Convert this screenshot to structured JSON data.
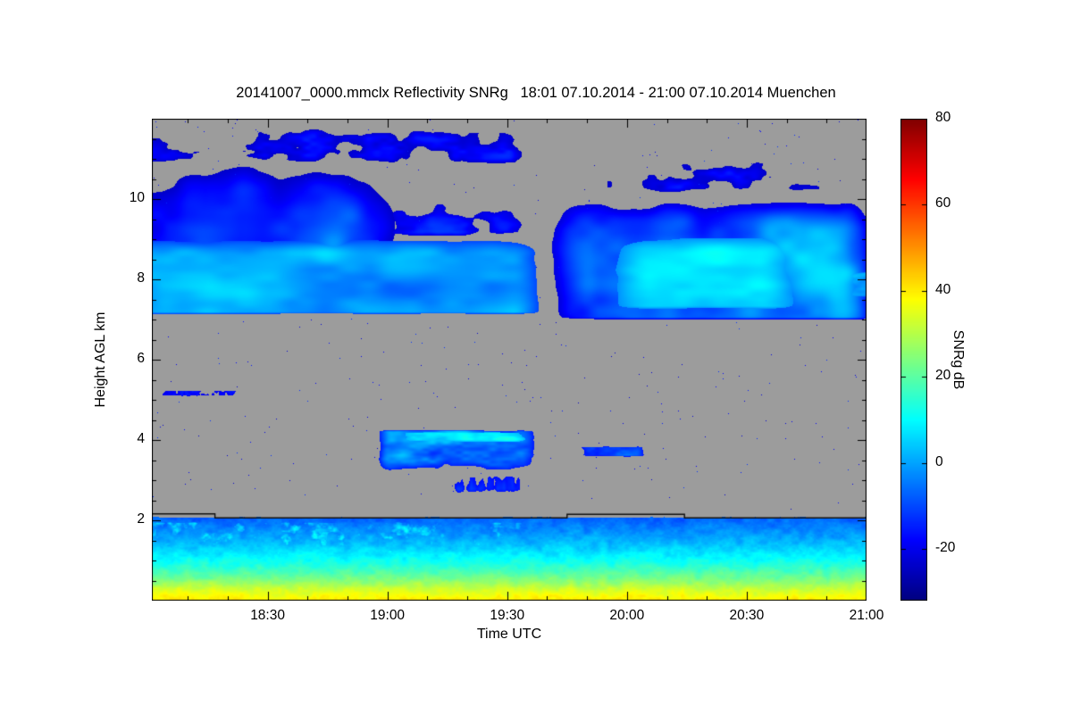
{
  "chart_data": {
    "type": "heatmap",
    "title": "20141007_0000.mmclx Reflectivity SNRg   18:01 07.10.2014 - 21:00 07.10.2014 Muenchen",
    "file": "20141007_0000.mmclx",
    "quantity": "Reflectivity SNRg",
    "time_start": "18:01 07.10.2014",
    "time_end": "21:00 07.10.2014",
    "station": "Muenchen",
    "xlabel": "Time UTC",
    "ylabel": "Height AGL km",
    "x_range_hours": [
      18.0167,
      21.0
    ],
    "y_range_km": [
      0,
      12
    ],
    "x_major_ticks": [
      {
        "hour": 18.5,
        "label": "18:30"
      },
      {
        "hour": 19.0,
        "label": "19:00"
      },
      {
        "hour": 19.5,
        "label": "19:30"
      },
      {
        "hour": 20.0,
        "label": "20:00"
      },
      {
        "hour": 20.5,
        "label": "20:30"
      },
      {
        "hour": 21.0,
        "label": "21:00"
      }
    ],
    "x_minor_step_hours": 0.1666667,
    "y_major_ticks": [
      {
        "km": 2,
        "label": "2"
      },
      {
        "km": 4,
        "label": "4"
      },
      {
        "km": 6,
        "label": "6"
      },
      {
        "km": 8,
        "label": "8"
      },
      {
        "km": 10,
        "label": "10"
      }
    ],
    "y_minor_step_km": 0.5,
    "background_color": "#9c9c9c",
    "colorbar": {
      "label": "SNRg dB",
      "vmin": -32,
      "vmax": 80,
      "colormap": "jet",
      "ticks": [
        {
          "value": 80,
          "label": "80"
        },
        {
          "value": 60,
          "label": "60"
        },
        {
          "value": 40,
          "label": "40"
        },
        {
          "value": 20,
          "label": "20"
        },
        {
          "value": 0,
          "label": "0"
        },
        {
          "value": -20,
          "label": "-20"
        }
      ]
    },
    "bl_top_line_km": [
      [
        18.0167,
        2.16
      ],
      [
        18.28,
        2.16
      ],
      [
        18.28,
        2.06
      ],
      [
        19.75,
        2.06
      ],
      [
        19.75,
        2.15
      ],
      [
        20.24,
        2.15
      ],
      [
        20.24,
        2.06
      ],
      [
        21.0,
        2.06
      ]
    ],
    "features": [
      {
        "kind": "cloud",
        "name": "cirrus-left-upper",
        "t": [
          17.8,
          19.18
        ],
        "h": [
          7.2,
          11.95
        ],
        "soft": [
          0.3,
          0.4,
          0.15,
          2.3
        ],
        "core": 11,
        "edge": -24,
        "density": 0.93,
        "fx": 2.6,
        "fy": 0.55,
        "seed": 7
      },
      {
        "kind": "cloud",
        "name": "cirrus-left-band",
        "t": [
          17.8,
          19.7
        ],
        "h": [
          7.1,
          9.2
        ],
        "soft": [
          0.2,
          0.18,
          0.1,
          0.6
        ],
        "core": 14,
        "edge": -10,
        "density": 0.96,
        "fx": 2.3,
        "fy": 0.9,
        "seed": 11
      },
      {
        "kind": "cloud",
        "name": "cirrus-left-top-speckle",
        "t": [
          17.8,
          19.7
        ],
        "h": [
          10.6,
          12.1
        ],
        "soft": [
          0.2,
          0.2,
          0.5,
          0.6
        ],
        "core": -8,
        "edge": -24,
        "density": 0.55,
        "fx": 6,
        "fy": 2,
        "seed": 15
      },
      {
        "kind": "cloud",
        "name": "cirrus-dip-speckle",
        "t": [
          18.9,
          19.68
        ],
        "h": [
          8.9,
          10.7
        ],
        "soft": [
          0.15,
          0.15,
          0.3,
          0.8
        ],
        "core": -6,
        "edge": -22,
        "density": 0.5,
        "fx": 5,
        "fy": 1.4,
        "seed": 13
      },
      {
        "kind": "cloud",
        "name": "cirrus-right-main",
        "t": [
          19.58,
          21.1
        ],
        "h": [
          6.95,
          10.4
        ],
        "soft": [
          0.28,
          0.2,
          0.12,
          1.2
        ],
        "core": 11,
        "edge": -22,
        "density": 0.92,
        "fx": 2.8,
        "fy": 0.6,
        "seed": 21
      },
      {
        "kind": "cloud",
        "name": "cirrus-right-core",
        "t": [
          19.85,
          20.8
        ],
        "h": [
          7.2,
          9.3
        ],
        "soft": [
          0.25,
          0.25,
          0.15,
          0.7
        ],
        "core": 16,
        "edge": -2,
        "density": 0.9,
        "fx": 2.5,
        "fy": 1.0,
        "seed": 25
      },
      {
        "kind": "cloud",
        "name": "cirrus-right-top-speckle",
        "t": [
          19.6,
          21.05
        ],
        "h": [
          9.9,
          11.5
        ],
        "soft": [
          0.2,
          0.2,
          0.4,
          0.7
        ],
        "core": -8,
        "edge": -24,
        "density": 0.45,
        "fx": 5.5,
        "fy": 1.6,
        "seed": 23
      },
      {
        "kind": "cloud",
        "name": "cirrus-right-tail",
        "t": [
          20.55,
          21.08
        ],
        "h": [
          7.5,
          8.25
        ],
        "soft": [
          0.15,
          0.1,
          0.1,
          0.12
        ],
        "core": 9,
        "edge": -14,
        "density": 0.8,
        "fx": 6,
        "fy": 2.5,
        "seed": 27
      },
      {
        "kind": "cloud",
        "name": "midlevel-cloud",
        "t": [
          18.93,
          19.66
        ],
        "h": [
          3.0,
          4.28
        ],
        "soft": [
          0.08,
          0.1,
          0.55,
          0.08
        ],
        "core": 13,
        "edge": -15,
        "density": 0.88,
        "fx": 7,
        "fy": 2.5,
        "seed": 31
      },
      {
        "kind": "cloud",
        "name": "midlevel-cloud-top-edge",
        "t": [
          19.02,
          19.62
        ],
        "h": [
          3.9,
          4.22
        ],
        "soft": [
          0.1,
          0.1,
          0.12,
          0.06
        ],
        "core": 17,
        "edge": 2,
        "density": 0.82,
        "fx": 9,
        "fy": 4,
        "seed": 33
      },
      {
        "kind": "cloud",
        "name": "midlevel-virga",
        "t": [
          19.15,
          19.64
        ],
        "h": [
          2.45,
          3.3
        ],
        "soft": [
          0.12,
          0.1,
          0.35,
          0.25
        ],
        "core": 0,
        "edge": -17,
        "density": 0.5,
        "fx": 16,
        "fy": 0.8,
        "seed": 35
      },
      {
        "kind": "cloud",
        "name": "midlevel-patch",
        "t": [
          19.77,
          20.1
        ],
        "h": [
          3.55,
          3.88
        ],
        "soft": [
          0.06,
          0.06,
          0.08,
          0.08
        ],
        "core": 3,
        "edge": -16,
        "density": 0.78,
        "fx": 11,
        "fy": 3,
        "seed": 41
      },
      {
        "kind": "cloud",
        "name": "dotted-line-5km",
        "t": [
          18.0,
          18.45
        ],
        "h": [
          5.08,
          5.24
        ],
        "soft": [
          0.05,
          0.1,
          0.03,
          0.03
        ],
        "core": -12,
        "edge": -20,
        "density": 0.55,
        "fx": 40,
        "fy": 5,
        "seed": 63
      },
      {
        "kind": "layer",
        "name": "boundary-layer",
        "t": [
          17.8,
          21.1
        ],
        "h": [
          0,
          2.08
        ],
        "stops": [
          [
            0,
            40
          ],
          [
            0.25,
            34
          ],
          [
            0.55,
            23
          ],
          [
            0.9,
            13
          ],
          [
            1.3,
            5
          ],
          [
            1.7,
            -2
          ],
          [
            2.08,
            -8
          ]
        ],
        "noise_amp": 9,
        "fx": 30,
        "fy": 7,
        "seed": 51,
        "top_soft": 0.14
      },
      {
        "kind": "cloud",
        "name": "bl-speckle-left",
        "t": [
          17.8,
          19.78
        ],
        "h": [
          0.85,
          2.02
        ],
        "soft": [
          0.1,
          0.25,
          0.3,
          0.1
        ],
        "core": 15,
        "edge": -6,
        "density": 0.5,
        "fx": 26,
        "fy": 5,
        "seed": 53
      },
      {
        "kind": "speckle",
        "name": "scattered-noise",
        "t": [
          17.8,
          21.1
        ],
        "h": [
          2.25,
          12
        ],
        "prob": 0.0013,
        "core": -12,
        "edge": -24,
        "seed": 61
      }
    ]
  }
}
